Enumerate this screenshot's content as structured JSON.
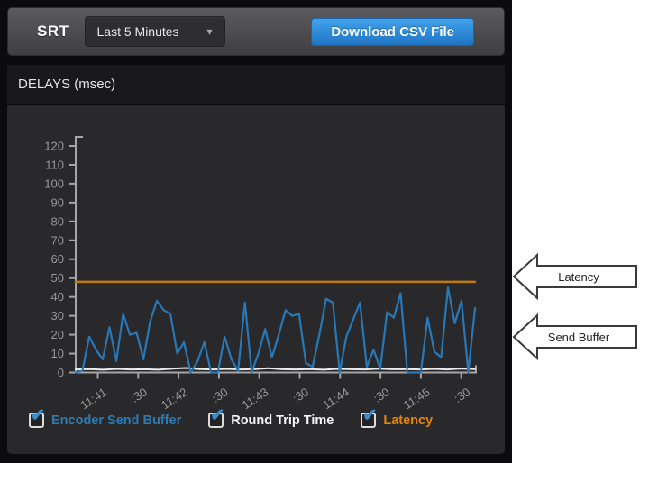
{
  "header": {
    "title": "SRT",
    "time_range_dropdown": {
      "value": "Last 5 Minutes"
    },
    "download_button_label": "Download CSV File"
  },
  "icons": {
    "caret_down": "▾",
    "checkmark": "✔"
  },
  "section": {
    "title": "DELAYS (msec)"
  },
  "chart_data": {
    "type": "line",
    "title": "DELAYS (msec)",
    "ylim": [
      0,
      123
    ],
    "y_ticks": [
      0,
      10,
      20,
      30,
      40,
      50,
      60,
      70,
      80,
      90,
      100,
      110,
      120
    ],
    "x_tick_labels": [
      "11:41",
      ":30",
      "11:42",
      ":30",
      "11:43",
      ":30",
      "11:44",
      ":30",
      "11:45",
      ":30"
    ],
    "grid": false,
    "legend_position": "bottom",
    "axis_color": "#a6a6a6",
    "tick_label_color": "#989898",
    "series": [
      {
        "name": "Round Trip Time",
        "color": "#ececec",
        "width": 2,
        "values": [
          1.6,
          1.8,
          1.5,
          1.9,
          1.6,
          1.7,
          1.5,
          2.0,
          2.4,
          1.8,
          1.6,
          1.9,
          1.6,
          1.8,
          2.3,
          1.7,
          1.6,
          1.8,
          1.5,
          1.9,
          1.7,
          1.6,
          2.0,
          1.7,
          1.8,
          1.6,
          1.9,
          1.6,
          2.1,
          1.8
        ]
      },
      {
        "name": "Encoder Send Buffer",
        "color": "#2878b8",
        "width": 2.2,
        "values": [
          0,
          1,
          19,
          12,
          7,
          24,
          6,
          31,
          20,
          21,
          7,
          27,
          38,
          33,
          31,
          10,
          16,
          0,
          6,
          16,
          0,
          0,
          19,
          7,
          1,
          37,
          0,
          10,
          23,
          8,
          20,
          33,
          30,
          31,
          5,
          3,
          20,
          39,
          37,
          0,
          19,
          28,
          37,
          3,
          12,
          2,
          32,
          29,
          42,
          0,
          0,
          0,
          29,
          11,
          8,
          45,
          26,
          38,
          0,
          34
        ]
      },
      {
        "name": "Latency",
        "color": "#bf7a12",
        "width": 2.5,
        "values": [
          48,
          48
        ]
      }
    ]
  },
  "legend": {
    "items": [
      {
        "label": "Encoder Send Buffer",
        "color": "#2f7ab0",
        "checked": true
      },
      {
        "label": "Round Trip Time",
        "color": "#f5f5f5",
        "checked": true
      },
      {
        "label": "Latency",
        "color": "#e0860f",
        "checked": true
      }
    ]
  },
  "annotations": [
    {
      "label": "Latency"
    },
    {
      "label": "Send Buffer"
    }
  ]
}
